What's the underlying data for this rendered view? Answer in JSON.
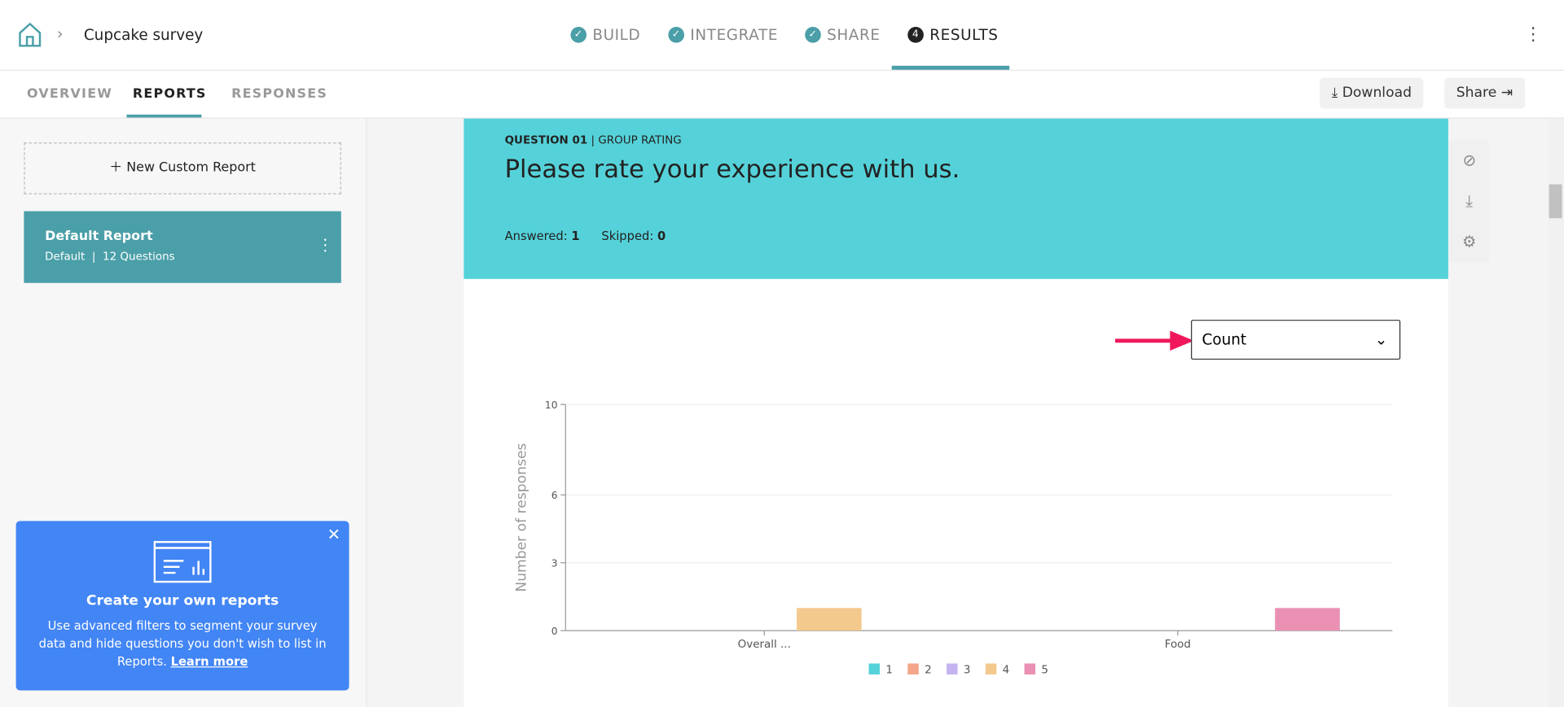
{
  "header": {
    "survey_name": "Cupcake survey",
    "steps": [
      "BUILD",
      "INTEGRATE",
      "SHARE",
      "RESULTS"
    ],
    "current_step_number": "4"
  },
  "tabs": [
    "OVERVIEW",
    "REPORTS",
    "RESPONSES"
  ],
  "buttons": [
    "Download",
    "Share"
  ],
  "sidebar": {
    "new_report": "New Custom Report",
    "report": {
      "title": "Default Report",
      "kind": "Default",
      "questions": "12 Questions"
    },
    "promo": {
      "title": "Create your own reports",
      "text": "Use advanced filters to segment your survey data and hide questions you don't wish to list in Reports.",
      "link": "Learn more"
    }
  },
  "question": {
    "label": "QUESTION 01",
    "type": "GROUP RATING",
    "text": "Please rate your experience with us.",
    "answered_label": "Answered:",
    "answered": "1",
    "skipped_label": "Skipped:",
    "skipped": "0",
    "dropdown": "Count"
  },
  "chart_data": {
    "type": "bar",
    "y_label": "Number of responses",
    "categories": [
      "Overall ...",
      "Food"
    ],
    "series": [
      {
        "name": "1",
        "color": "#55d2d9",
        "values": [
          0,
          0
        ]
      },
      {
        "name": "2",
        "color": "#f4a58a",
        "values": [
          0,
          0
        ]
      },
      {
        "name": "3",
        "color": "#c3b3f0",
        "values": [
          0,
          0
        ]
      },
      {
        "name": "4",
        "color": "#f4c98e",
        "values": [
          1,
          0
        ]
      },
      {
        "name": "5",
        "color": "#ea90b2",
        "values": [
          0,
          1
        ]
      }
    ],
    "ylim": [
      0,
      10
    ],
    "yticks": [
      0,
      3,
      6,
      10
    ],
    "grid": true
  }
}
